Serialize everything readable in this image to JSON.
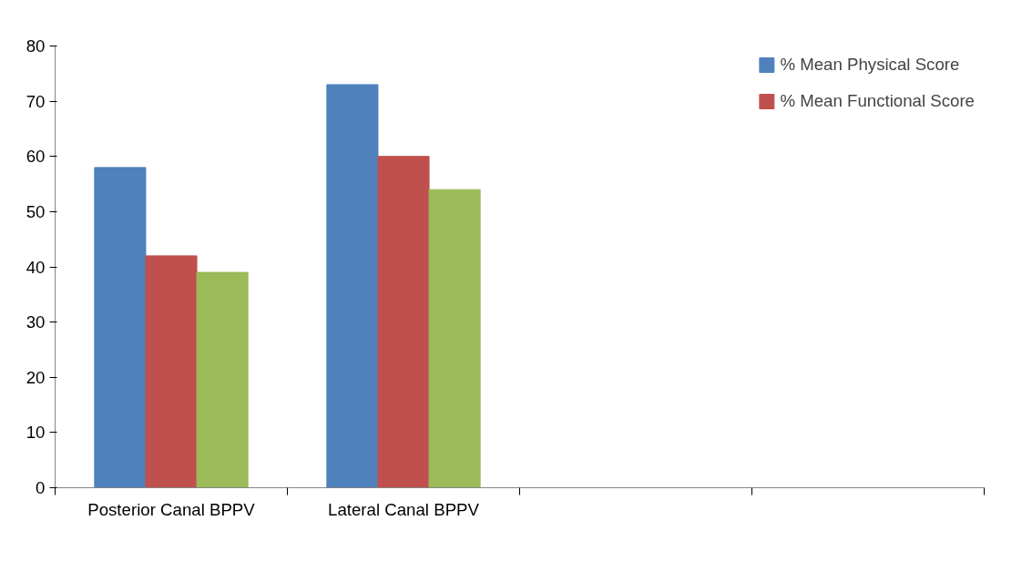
{
  "chart_data": {
    "type": "bar",
    "categories": [
      "Posterior Canal BPPV",
      "Lateral Canal BPPV",
      null,
      null
    ],
    "series": [
      {
        "name": "% Mean Physical Score",
        "color": "#4f81bd",
        "values": [
          58,
          73,
          null,
          null
        ]
      },
      {
        "name": "% Mean Functional Score",
        "color": "#c0504d",
        "values": [
          42,
          60,
          null,
          null
        ]
      },
      {
        "color": "#9bbb59",
        "values": [
          39,
          54,
          null,
          null
        ]
      }
    ],
    "ylim": [
      0,
      80
    ],
    "yticks": [
      0,
      10,
      20,
      30,
      40,
      50,
      60,
      70,
      80
    ],
    "grid": false,
    "legend": "top right"
  }
}
